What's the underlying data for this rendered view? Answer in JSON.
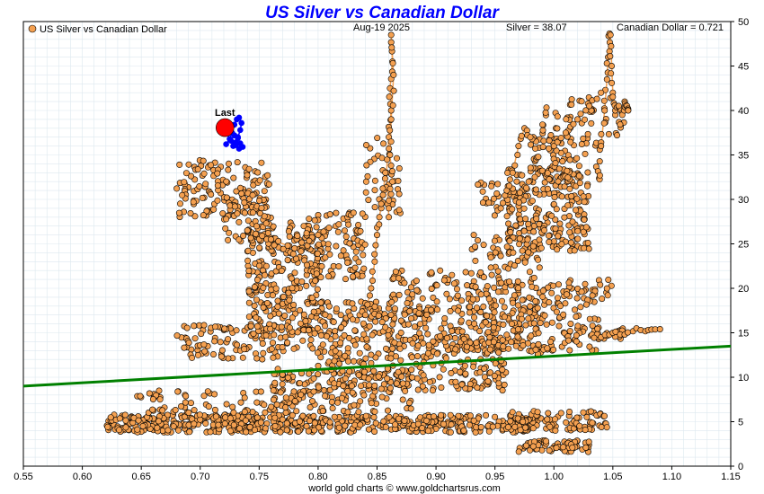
{
  "chart_data": {
    "type": "scatter",
    "title": "US Silver vs Canadian Dollar",
    "legend_label": "US Silver vs Canadian Dollar",
    "date_label": "Aug-19  2025",
    "silver_readout": "Silver = 38.07",
    "cad_readout": "Canadian Dollar = 0.721",
    "last_label": "Last",
    "footer": "world gold charts © www.goldchartsrus.com",
    "xlim": [
      0.55,
      1.15
    ],
    "ylim": [
      0,
      50
    ],
    "x_ticks": [
      0.55,
      0.6,
      0.65,
      0.7,
      0.75,
      0.8,
      0.85,
      0.9,
      0.95,
      1.0,
      1.05,
      1.1,
      1.15
    ],
    "x_tick_labels": [
      "0.55",
      "0.60",
      "0.65",
      "0.70",
      "0.75",
      "0.80",
      "0.85",
      "0.90",
      "0.95",
      "1.00",
      "1.05",
      "1.10",
      "1.15"
    ],
    "y_ticks": [
      0,
      5,
      10,
      15,
      20,
      25,
      30,
      35,
      40,
      45,
      50
    ],
    "y_tick_labels": [
      "0",
      "5",
      "10",
      "15",
      "20",
      "25",
      "30",
      "35",
      "40",
      "45",
      "50"
    ],
    "grid": true,
    "legend_position": "top-left",
    "colors": {
      "title": "#0000ff",
      "points_fill": "#f4a050",
      "points_stroke": "#000000",
      "path_line": "#f4a050",
      "trend_line": "#008000",
      "recent_points": "#0000ff",
      "last_marker": "#ff0000",
      "grid": "#dde8ef"
    },
    "trend_line": {
      "x": [
        0.55,
        1.15
      ],
      "y": [
        9.0,
        13.5
      ]
    },
    "last_point": {
      "x": 0.721,
      "y": 38.07
    },
    "recent_series": {
      "x": [
        0.722,
        0.725,
        0.727,
        0.729,
        0.731,
        0.733,
        0.735,
        0.734,
        0.732,
        0.73,
        0.728,
        0.726,
        0.729,
        0.732,
        0.734,
        0.736,
        0.733,
        0.73
      ],
      "y": [
        36.2,
        36.8,
        37.5,
        38.4,
        39.0,
        39.2,
        38.6,
        37.8,
        37.0,
        36.4,
        36.0,
        36.6,
        37.2,
        36.9,
        36.3,
        35.9,
        35.7,
        36.1
      ]
    },
    "clusters": [
      {
        "x": [
          0.62,
          0.78
        ],
        "y": [
          3.8,
          5.8
        ],
        "n": 300
      },
      {
        "x": [
          0.78,
          0.99
        ],
        "y": [
          3.8,
          5.8
        ],
        "n": 300
      },
      {
        "x": [
          0.96,
          1.045
        ],
        "y": [
          4.0,
          6.2
        ],
        "n": 90
      },
      {
        "x": [
          0.97,
          1.03
        ],
        "y": [
          1.6,
          3.0
        ],
        "n": 70
      },
      {
        "x": [
          0.64,
          0.79
        ],
        "y": [
          6.0,
          8.5
        ],
        "n": 70
      },
      {
        "x": [
          0.76,
          0.88
        ],
        "y": [
          6.0,
          11.0
        ],
        "n": 160
      },
      {
        "x": [
          0.8,
          0.96
        ],
        "y": [
          8.5,
          14.5
        ],
        "n": 260
      },
      {
        "x": [
          0.86,
          0.99
        ],
        "y": [
          12.5,
          18.0
        ],
        "n": 160
      },
      {
        "x": [
          0.94,
          1.04
        ],
        "y": [
          13.0,
          20.5
        ],
        "n": 160
      },
      {
        "x": [
          0.68,
          0.8
        ],
        "y": [
          12.0,
          16.0
        ],
        "n": 110
      },
      {
        "x": [
          0.74,
          0.86
        ],
        "y": [
          14.5,
          18.5
        ],
        "n": 170
      },
      {
        "x": [
          0.74,
          0.8
        ],
        "y": [
          18.0,
          27.5
        ],
        "n": 190
      },
      {
        "x": [
          0.79,
          0.84
        ],
        "y": [
          21.0,
          28.5
        ],
        "n": 100
      },
      {
        "x": [
          0.68,
          0.76
        ],
        "y": [
          28.0,
          34.5
        ],
        "n": 120
      },
      {
        "x": [
          0.72,
          0.76
        ],
        "y": [
          25.0,
          31.0
        ],
        "n": 60
      },
      {
        "x": [
          0.86,
          0.94
        ],
        "y": [
          17.0,
          22.0
        ],
        "n": 90
      },
      {
        "x": [
          0.93,
          0.99
        ],
        "y": [
          20.0,
          26.0
        ],
        "n": 70
      },
      {
        "x": [
          0.96,
          1.03
        ],
        "y": [
          24.0,
          33.5
        ],
        "n": 230
      },
      {
        "x": [
          0.98,
          1.04
        ],
        "y": [
          32.0,
          37.0
        ],
        "n": 70
      },
      {
        "x": [
          0.99,
          1.06
        ],
        "y": [
          36.0,
          41.5
        ],
        "n": 60
      },
      {
        "x": [
          0.93,
          0.98
        ],
        "y": [
          27.5,
          32.0
        ],
        "n": 35
      },
      {
        "x": [
          1.0,
          1.05
        ],
        "y": [
          18.0,
          21.0
        ],
        "n": 25
      },
      {
        "x": [
          1.0,
          1.06
        ],
        "y": [
          14.0,
          15.5
        ],
        "n": 25
      },
      {
        "x": [
          0.84,
          0.87
        ],
        "y": [
          28.0,
          37.0
        ],
        "n": 35
      }
    ],
    "path_segments": [
      {
        "x": [
          0.86,
          0.858,
          0.86,
          0.862,
          0.861,
          0.863,
          0.862,
          0.864,
          0.862,
          0.861,
          0.863,
          0.86
        ],
        "y": [
          28.0,
          33.0,
          37.0,
          40.0,
          42.5,
          45.5,
          48.5,
          44.0,
          39.0,
          35.0,
          32.0,
          29.0
        ]
      },
      {
        "x": [
          0.84,
          0.845,
          0.848,
          0.85,
          0.852,
          0.855,
          0.857
        ],
        "y": [
          17.0,
          20.0,
          23.0,
          26.0,
          28.0,
          30.5,
          33.0
        ]
      },
      {
        "x": [
          1.04,
          1.043,
          1.045,
          1.046,
          1.047,
          1.048,
          1.049,
          1.05,
          1.052,
          1.055,
          1.058,
          1.06,
          1.062,
          1.063
        ],
        "y": [
          36.0,
          40.0,
          43.5,
          46.0,
          48.5,
          48.5,
          45.0,
          42.0,
          40.0,
          40.5,
          39.5,
          41.0,
          40.5,
          40.0
        ]
      },
      {
        "x": [
          1.0,
          1.01,
          1.02,
          1.03,
          1.04
        ],
        "y": [
          36.0,
          37.5,
          39.0,
          40.5,
          42.0
        ]
      },
      {
        "x": [
          0.955,
          0.96,
          0.965,
          0.97,
          0.975,
          0.98
        ],
        "y": [
          29.0,
          31.0,
          33.0,
          36.0,
          38.0,
          37.0
        ]
      },
      {
        "x": [
          1.04,
          1.05,
          1.06,
          1.07,
          1.08,
          1.09
        ],
        "y": [
          14.5,
          15.0,
          14.8,
          15.5,
          15.3,
          15.4
        ]
      },
      {
        "x": [
          0.74,
          0.76,
          0.78,
          0.8,
          0.815,
          0.825,
          0.83
        ],
        "y": [
          26.5,
          25.5,
          24.5,
          26.0,
          27.0,
          28.0,
          28.5
        ]
      }
    ]
  }
}
